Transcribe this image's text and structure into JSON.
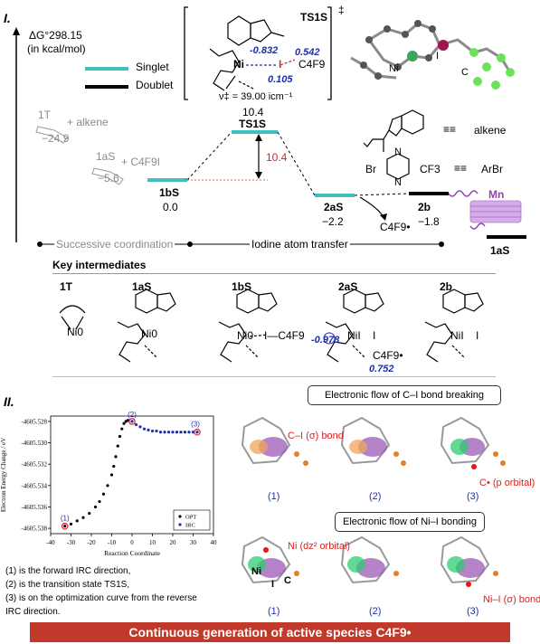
{
  "part1": {
    "label": "I.",
    "axis_label_line1": "ΔG°298.15",
    "axis_label_line2": "(in kcal/mol)",
    "legend": [
      {
        "name": "Singlet",
        "color": "#3fbfbf"
      },
      {
        "name": "Doublet",
        "color": "#000000"
      }
    ],
    "ts_box": {
      "title": "TS1S",
      "dagger": "‡",
      "dist1": "-0.832",
      "dist2": "0.542",
      "dist3": "0.105",
      "substituent": "C4F9",
      "freq": "ν‡ = 39.00 icm⁻¹"
    },
    "states": {
      "s1T": "1T",
      "s1T_step": "+ alkene",
      "s1T_val": "−24.9",
      "s1aS": "1aS",
      "s1aS_step": "+ C4F9I",
      "s1aS_val": "−5.6",
      "s1bS": "1bS",
      "s1bS_val": "0.0",
      "ts1S_val": "10.4",
      "ts1S": "TS1S",
      "barrier": "10.4",
      "s2aS": "2aS",
      "s2aS_val": "−2.2",
      "radical": "C4F9•",
      "s2b": "2b",
      "s2b_val": "−1.8",
      "mn": "Mn",
      "s1aS_end": "1aS"
    },
    "reagents": {
      "alkene": "alkene",
      "arbr": "ArBr",
      "br": "Br",
      "cf3": "CF3",
      "n": "N"
    },
    "phases": {
      "phase1": "Successive coordination",
      "phase2": "Iodine atom transfer"
    },
    "key_title": "Key intermediates",
    "intermediates": [
      {
        "label": "1T",
        "ni": "Ni0"
      },
      {
        "label": "1aS",
        "ni": "Ni0"
      },
      {
        "label": "1bS",
        "ni": "Ni0",
        "extra": "I—C4F9"
      },
      {
        "label": "2aS",
        "ni": "NiI",
        "extra": "I",
        "spin1": "-0.978",
        "spin2": "0.752",
        "radical": "C4F9•"
      },
      {
        "label": "2b",
        "ni": "NiI",
        "extra": "I"
      }
    ]
  },
  "part2": {
    "label": "II.",
    "box1": "Electronic flow of C–I bond breaking",
    "box2": "Electronic flow of Ni–I bonding",
    "ann_ci": "C–I (σ) bond",
    "ann_cdot": "C• (p orbital)",
    "ann_ni": "Ni (dz² orbital)",
    "ann_nii": "Ni–I (σ) bond",
    "frame_labels": [
      "(1)",
      "(2)",
      "(3)"
    ],
    "atoms": {
      "ni": "Ni",
      "i": "I",
      "c": "C"
    },
    "notes": [
      "(1) is the forward IRC direction,",
      "(2) is the transition state TS1S,",
      "(3) is on the optimization curve from the reverse",
      "IRC direction."
    ],
    "banner": "Continuous generation of active species C4F9•"
  },
  "chart_data": {
    "type": "scatter",
    "xlabel": "Reaction Coordinate",
    "ylabel": "Electron Energy Change / eV",
    "xlim": [
      -40,
      40
    ],
    "ylim": [
      -4605.5385,
      -4605.5275
    ],
    "xticks": [
      -40,
      -30,
      -20,
      -10,
      0,
      10,
      20,
      30,
      40
    ],
    "yticks": [
      -4605.528,
      -4605.53,
      -4605.532,
      -4605.534,
      -4605.536,
      -4605.538
    ],
    "legend": [
      "OPT",
      "IRC"
    ],
    "legend_position": "bottom-right",
    "series": [
      {
        "name": "OPT",
        "color": "#000000",
        "x": [
          -33,
          -30,
          -27,
          -24,
          -21,
          -18,
          -16,
          -14,
          -12,
          -10,
          -9,
          -8,
          -7,
          -6,
          -5,
          -4,
          -3,
          -2
        ],
        "y": [
          -4605.5378,
          -4605.5376,
          -4605.5373,
          -4605.537,
          -4605.5366,
          -4605.536,
          -4605.5355,
          -4605.5348,
          -4605.534,
          -4605.533,
          -4605.5322,
          -4605.5313,
          -4605.5303,
          -4605.5294,
          -4605.5287,
          -4605.5282,
          -4605.528,
          -4605.5279
        ]
      },
      {
        "name": "IRC",
        "color": "#1f2fa8",
        "x": [
          0,
          2,
          4,
          6,
          8,
          10,
          12,
          14,
          16,
          18,
          20,
          22,
          24,
          26,
          28,
          30,
          32
        ],
        "y": [
          -4605.528,
          -4605.5283,
          -4605.5285,
          -4605.5287,
          -4605.5288,
          -4605.5289,
          -4605.5289,
          -4605.529,
          -4605.529,
          -4605.529,
          -4605.529,
          -4605.529,
          -4605.529,
          -4605.529,
          -4605.529,
          -4605.529,
          -4605.529
        ]
      }
    ],
    "highlights": [
      {
        "label": "(1)",
        "x": -33,
        "y": -4605.5378
      },
      {
        "label": "(2)",
        "x": 0,
        "y": -4605.528
      },
      {
        "label": "(3)",
        "x": 32,
        "y": -4605.529
      }
    ]
  }
}
